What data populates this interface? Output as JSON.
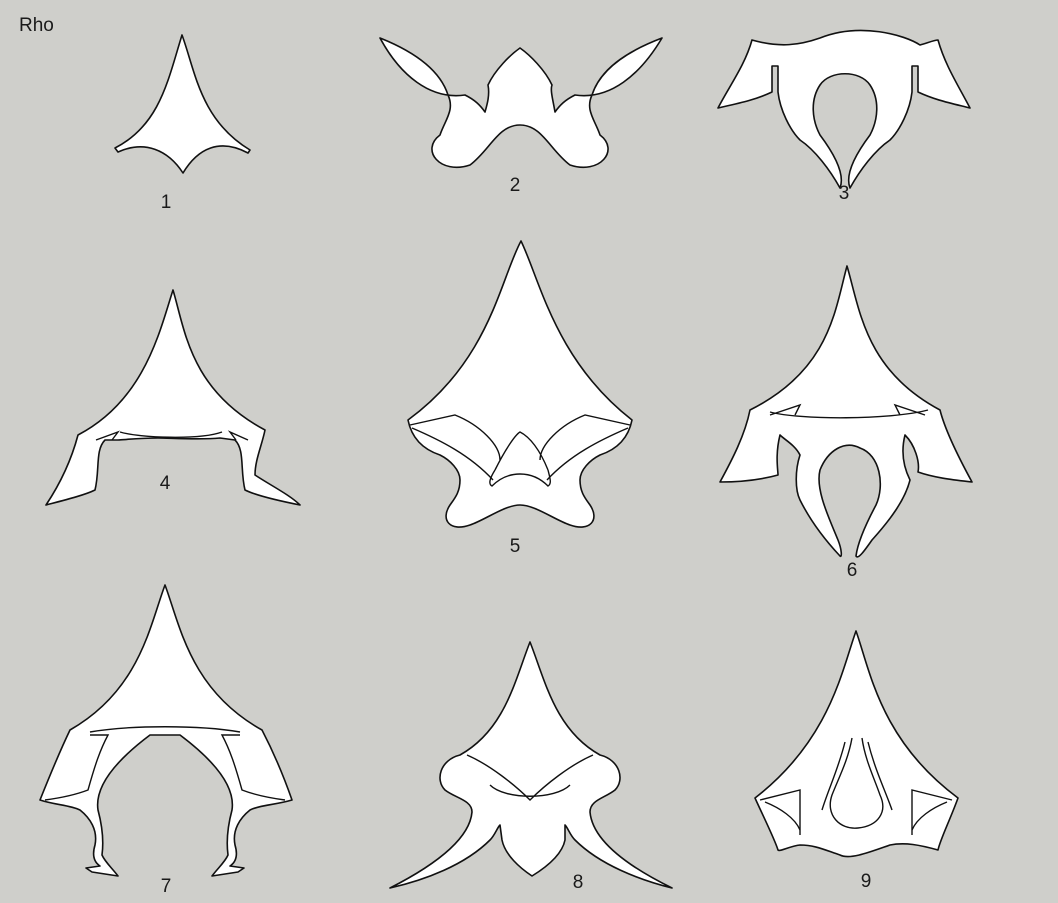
{
  "title": "Rho",
  "labels": [
    "1",
    "2",
    "3",
    "4",
    "5",
    "6",
    "7",
    "8",
    "9"
  ],
  "colors": {
    "background": "#cfcfcb",
    "fill": "#ffffff",
    "stroke": "#111111"
  }
}
